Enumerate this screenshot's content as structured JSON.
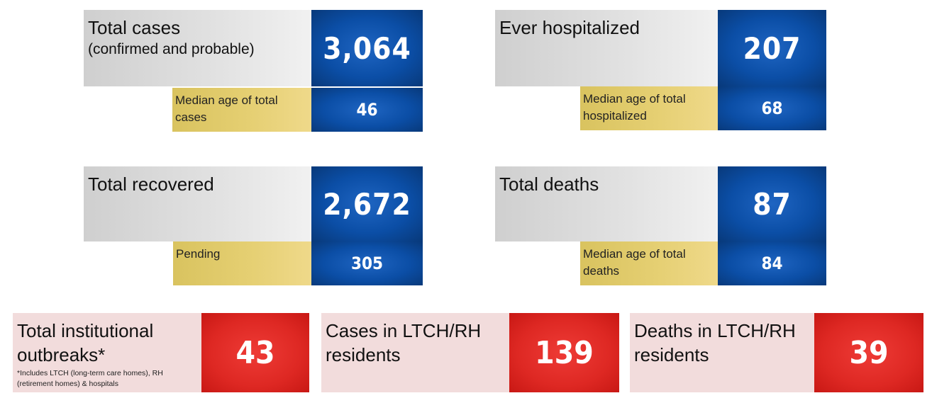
{
  "total_cases": {
    "title": "Total cases",
    "subtitle": "(confirmed and probable)",
    "value": "3,064",
    "median_label": "Median age of total cases",
    "median_value": "46"
  },
  "ever_hospitalized": {
    "title": "Ever hospitalized",
    "value": "207",
    "median_label": "Median age of total hospitalized",
    "median_value": "68"
  },
  "total_recovered": {
    "title": "Total recovered",
    "value": "2,672",
    "pending_label": "Pending",
    "pending_value": "305"
  },
  "total_deaths": {
    "title": "Total deaths",
    "value": "87",
    "median_label": "Median age of total deaths",
    "median_value": "84"
  },
  "institutional_outbreaks": {
    "title": "Total institutional outbreaks*",
    "note": "*Includes LTCH (long-term care homes), RH (retirement homes) & hospitals",
    "value": "43"
  },
  "ltch_cases": {
    "title": "Cases in LTCH/RH residents",
    "value": "139"
  },
  "ltch_deaths": {
    "title": "Deaths in LTCH/RH residents",
    "value": "39"
  },
  "colors": {
    "blue": "#0b4ea6",
    "gold": "#e5cf72",
    "gray": "#d9d9d9",
    "red": "#de2823",
    "pink": "#f2dcdc"
  }
}
